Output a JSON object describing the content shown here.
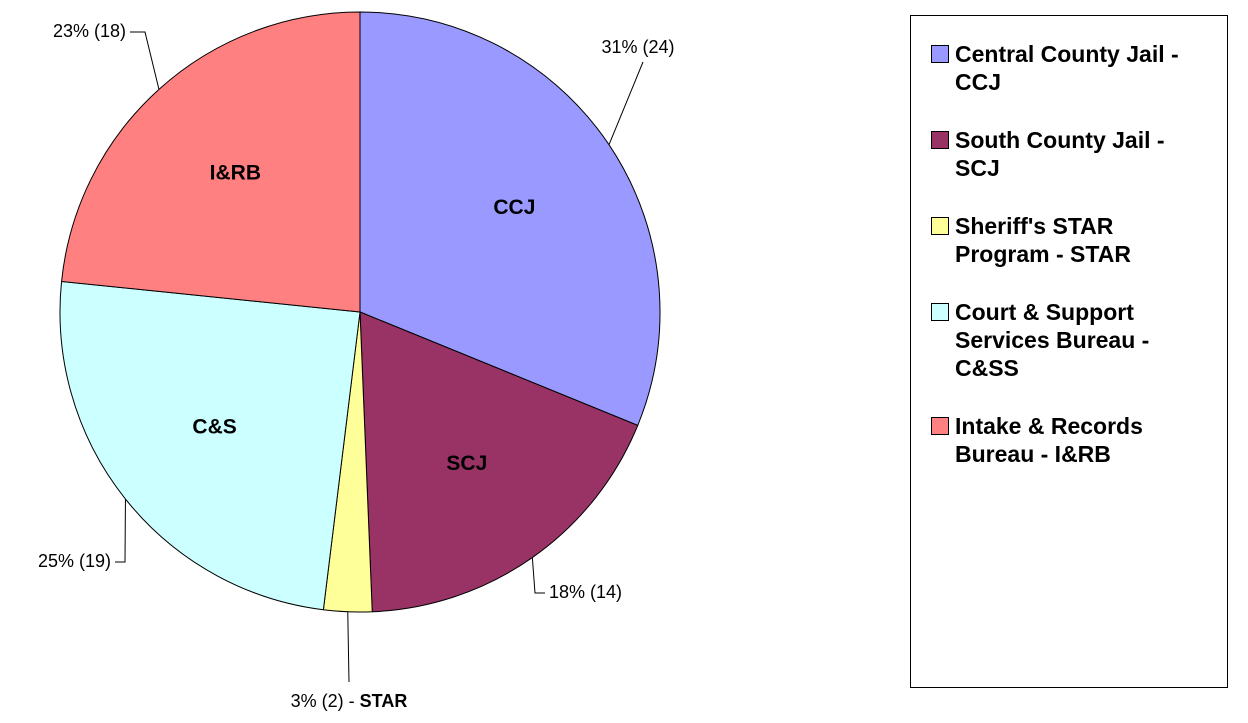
{
  "chart_data": {
    "type": "pie",
    "values": [
      24,
      14,
      2,
      19,
      18
    ],
    "value_labels": [
      "31% (24)",
      "18% (14)",
      "3% (2) -",
      "25% (19)",
      "23% (18)"
    ],
    "slice_labels": [
      "CCJ",
      "SCJ",
      "STAR",
      "C&S",
      "I&RB"
    ],
    "series": [
      {
        "name": "Central County Jail - CCJ",
        "color": "#9999ff"
      },
      {
        "name": "South County Jail - SCJ",
        "color": "#993366"
      },
      {
        "name": "Sheriff's STAR Program - STAR",
        "color": "#ffff99"
      },
      {
        "name": "Court & Support Services Bureau - C&SS",
        "color": "#ccffff"
      },
      {
        "name": "Intake & Records Bureau - I&RB",
        "color": "#ff8080"
      }
    ],
    "legend": "right"
  }
}
